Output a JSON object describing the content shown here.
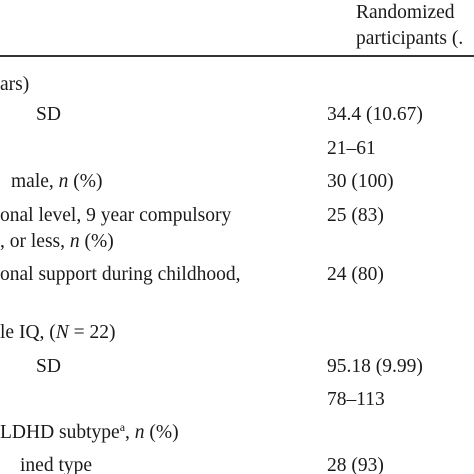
{
  "header": {
    "col_line1": "Randomized",
    "col_line2": "participants (."
  },
  "rows": [
    {
      "label": "ars)",
      "value": ""
    },
    {
      "label": "SD",
      "value": "34.4 (10.67)"
    },
    {
      "label": "",
      "value": "21–61"
    },
    {
      "label_pre": " male, ",
      "label_ital": "n",
      "label_post": " (%)",
      "value": "30 (100)"
    },
    {
      "label": "onal level, 9 year compulsory",
      "value": "25 (83)"
    },
    {
      "label_pre": ", or less, ",
      "label_ital": "n",
      "label_post": " (%)",
      "value": ""
    },
    {
      "label": "onal support during childhood,",
      "value": "24 (80)"
    },
    {
      "label_pre": "le IQ, (",
      "label_ital": "N",
      "label_post": " = 22)",
      "value": ""
    },
    {
      "label": "SD",
      "value": "95.18 (9.99)"
    },
    {
      "label": "",
      "value": "78–113"
    },
    {
      "label_pre": "LDHD subtype",
      "label_sup": "a",
      "label_mid": ", ",
      "label_ital": "n",
      "label_post": " (%)",
      "value": ""
    },
    {
      "label": "ined type",
      "value": "28 (93)"
    }
  ]
}
